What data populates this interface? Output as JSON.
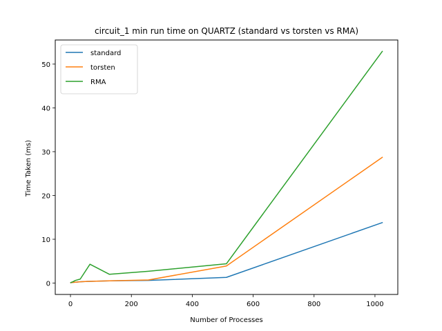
{
  "chart_data": {
    "type": "line",
    "title": "circuit_1 min run time on QUARTZ (standard vs torsten vs RMA)",
    "xlabel": "Number of Processes",
    "ylabel": "Time Taken (ms)",
    "xlim": [
      -50,
      1075
    ],
    "ylim": [
      -2.6,
      55.5
    ],
    "xticks": [
      0,
      200,
      400,
      600,
      800,
      1000
    ],
    "yticks": [
      0,
      10,
      20,
      30,
      40,
      50
    ],
    "grid": false,
    "legend_position": "top-left",
    "x": [
      1,
      2,
      4,
      8,
      16,
      32,
      64,
      128,
      256,
      512,
      1024
    ],
    "series": [
      {
        "name": "standard",
        "color": "#1f77b4",
        "values": [
          0.1,
          0.1,
          0.12,
          0.15,
          0.2,
          0.3,
          0.4,
          0.5,
          0.6,
          1.3,
          13.8
        ]
      },
      {
        "name": "torsten",
        "color": "#ff7f0e",
        "values": [
          0.1,
          0.1,
          0.12,
          0.15,
          0.2,
          0.3,
          0.4,
          0.5,
          0.7,
          3.9,
          28.7
        ]
      },
      {
        "name": "RMA",
        "color": "#2ca02c",
        "values": [
          0.1,
          0.15,
          0.2,
          0.3,
          0.6,
          0.9,
          4.3,
          2.0,
          2.7,
          4.4,
          52.9
        ]
      }
    ]
  }
}
